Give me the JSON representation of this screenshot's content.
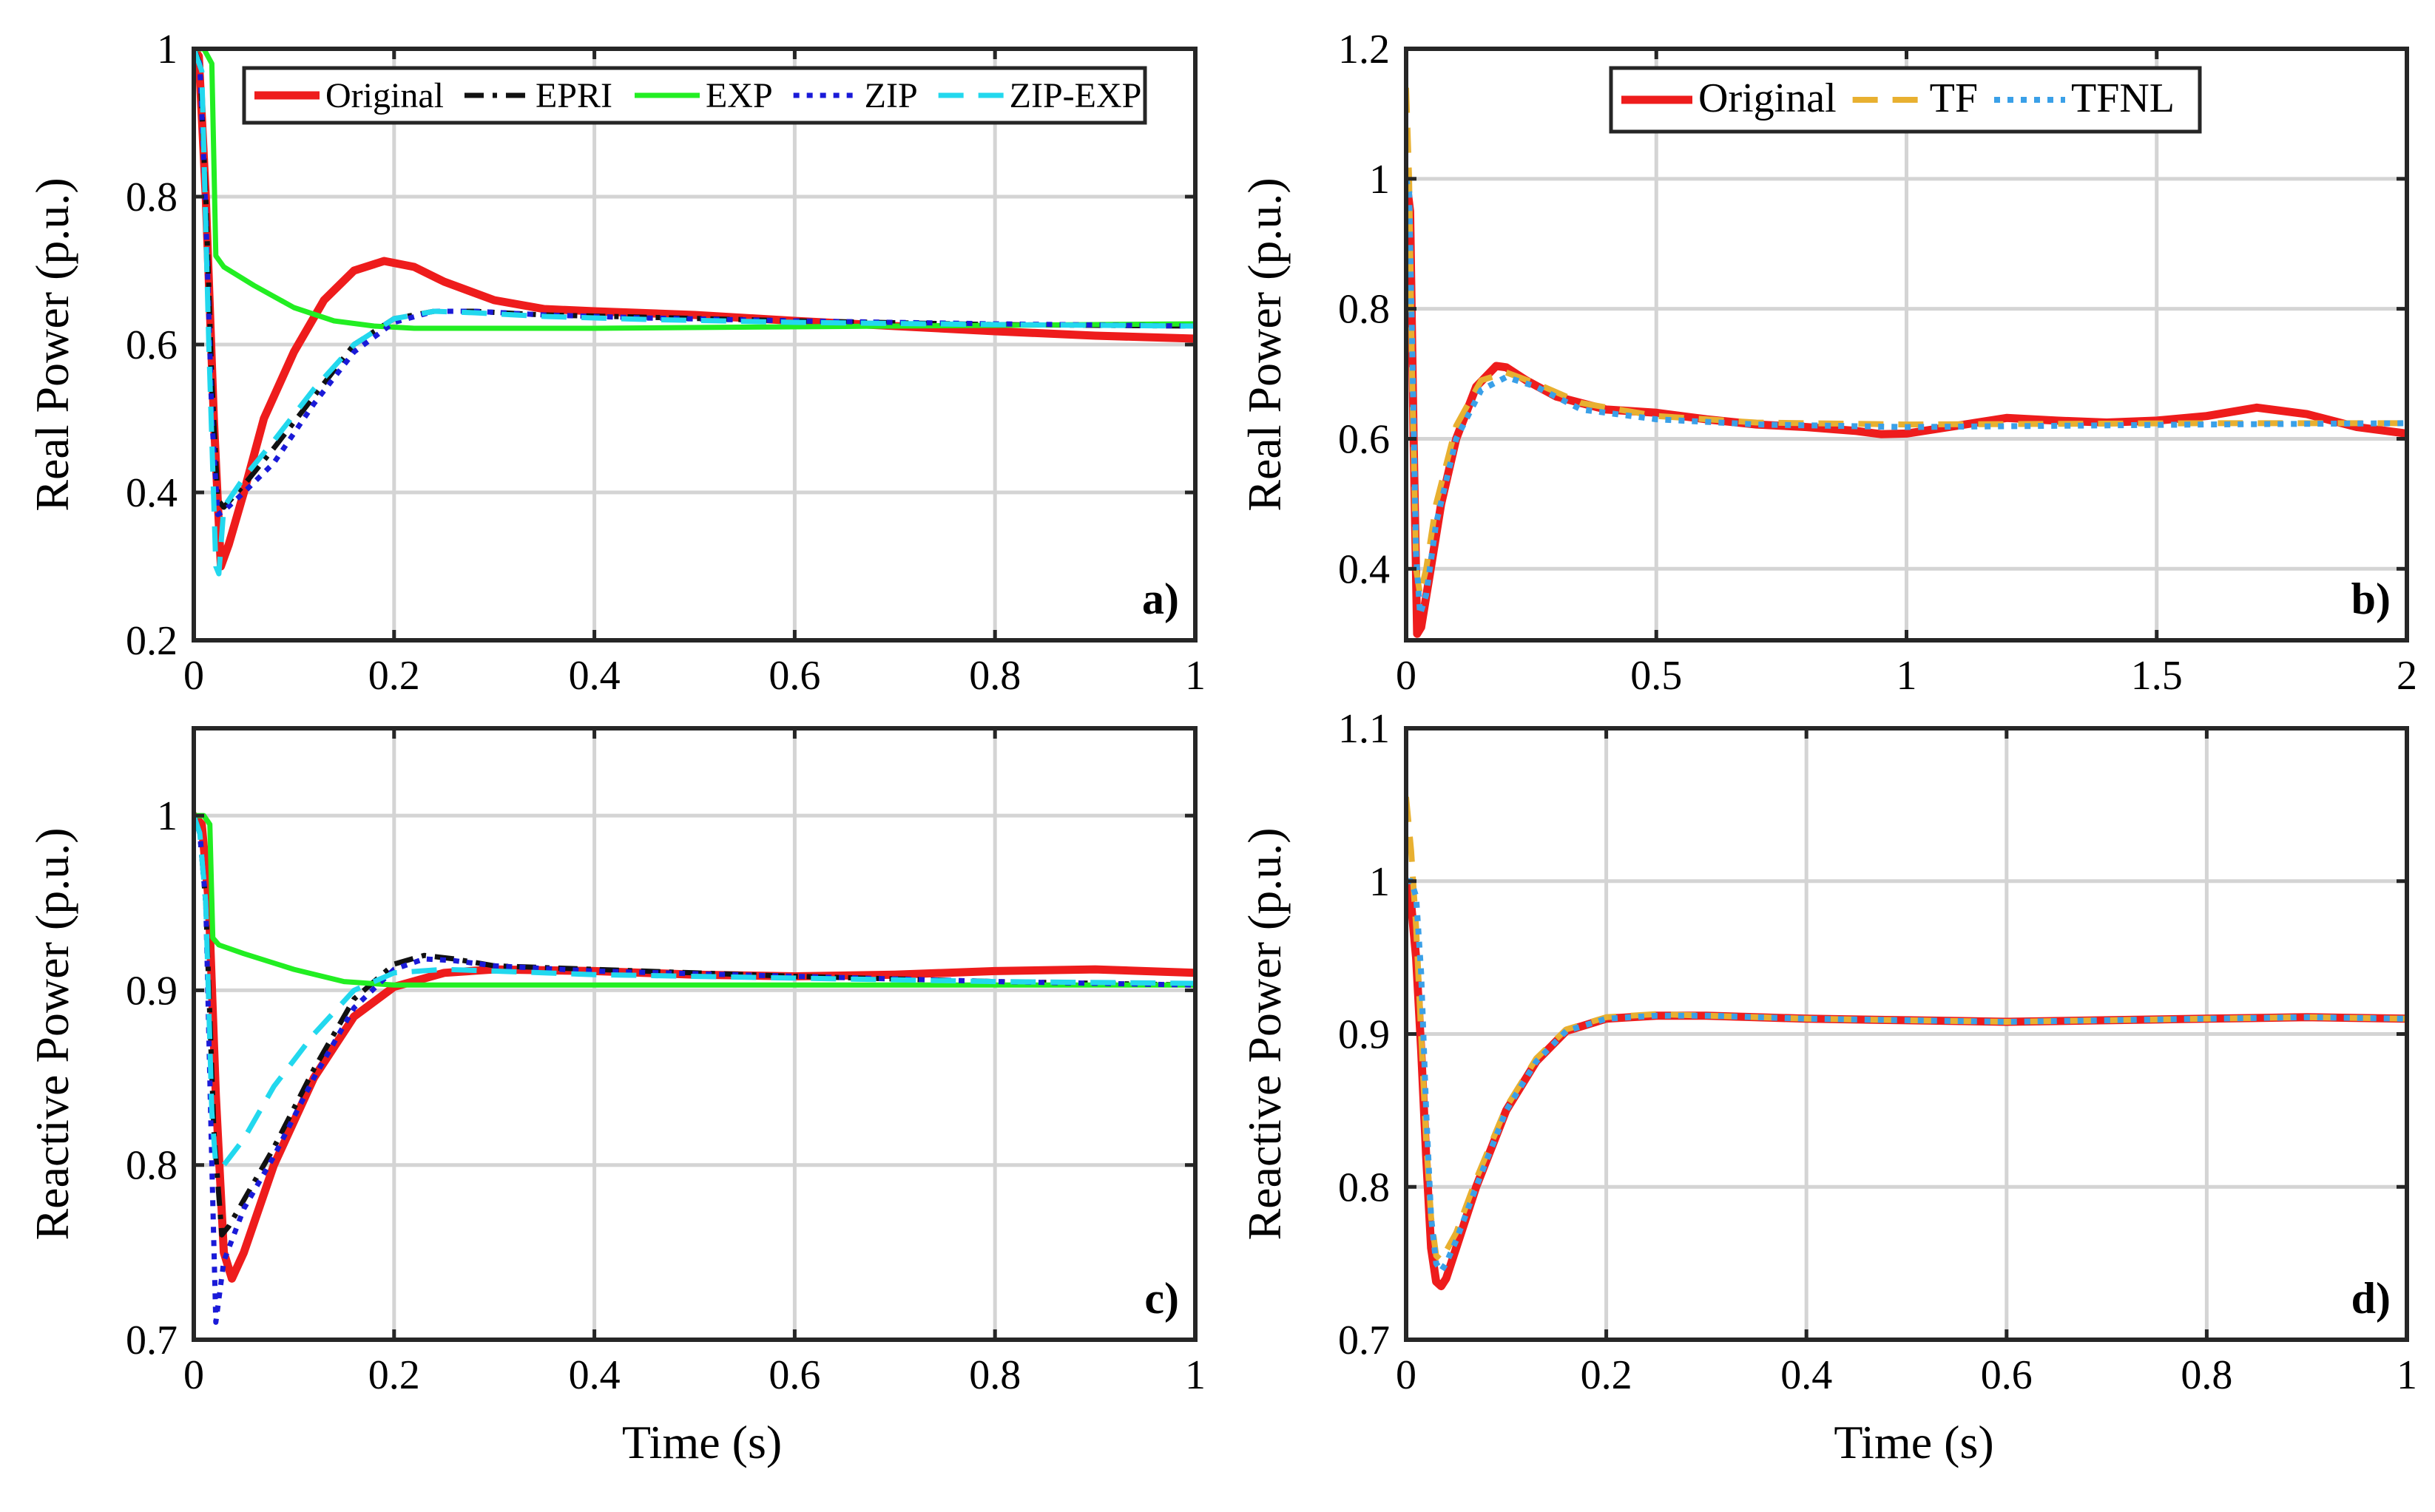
{
  "chart_data": [
    {
      "id": "a",
      "type": "line",
      "panel_label": "a)",
      "xlabel": "",
      "ylabel": "Real Power (p.u.)",
      "xlim": [
        0,
        1
      ],
      "ylim": [
        0.2,
        1
      ],
      "xticks": [
        0,
        0.2,
        0.4,
        0.6,
        0.8,
        1
      ],
      "xtick_labels": [
        "0",
        "0.2",
        "0.4",
        "0.6",
        "0.8",
        "1"
      ],
      "yticks": [
        0.2,
        0.4,
        0.6,
        0.8,
        1
      ],
      "ytick_labels": [
        "0.2",
        "0.4",
        "0.6",
        "0.8",
        "1"
      ],
      "grid": true,
      "legend": "top, horizontal",
      "series": [
        {
          "name": "Original",
          "color": "#ee1c1c",
          "style": "solid",
          "width": 11,
          "x": [
            0,
            0.005,
            0.012,
            0.02,
            0.027,
            0.035,
            0.05,
            0.07,
            0.1,
            0.13,
            0.16,
            0.19,
            0.22,
            0.25,
            0.3,
            0.35,
            0.4,
            0.5,
            0.6,
            0.7,
            0.8,
            0.9,
            0.95,
            1.0
          ],
          "y": [
            1.0,
            0.99,
            0.8,
            0.5,
            0.3,
            0.33,
            0.4,
            0.5,
            0.59,
            0.66,
            0.7,
            0.713,
            0.705,
            0.685,
            0.66,
            0.648,
            0.645,
            0.64,
            0.632,
            0.625,
            0.618,
            0.612,
            0.61,
            0.608
          ]
        },
        {
          "name": "EPRI",
          "color": "#111111",
          "style": "dashdot",
          "width": 7,
          "x": [
            0,
            0.006,
            0.012,
            0.018,
            0.024,
            0.03,
            0.05,
            0.08,
            0.12,
            0.16,
            0.2,
            0.24,
            0.28,
            0.35,
            0.45,
            0.6,
            0.8,
            1.0
          ],
          "y": [
            1.0,
            0.98,
            0.8,
            0.55,
            0.39,
            0.38,
            0.41,
            0.46,
            0.53,
            0.6,
            0.635,
            0.645,
            0.645,
            0.64,
            0.637,
            0.632,
            0.627,
            0.625
          ]
        },
        {
          "name": "EXP",
          "color": "#22ee22",
          "style": "solid",
          "width": 7,
          "x": [
            0,
            0.01,
            0.018,
            0.022,
            0.03,
            0.06,
            0.1,
            0.14,
            0.18,
            0.22,
            0.3,
            0.4,
            0.6,
            0.8,
            1.0
          ],
          "y": [
            1.0,
            1.0,
            0.98,
            0.72,
            0.705,
            0.68,
            0.65,
            0.632,
            0.625,
            0.622,
            0.622,
            0.622,
            0.624,
            0.626,
            0.628
          ]
        },
        {
          "name": "ZIP",
          "color": "#1a1ad8",
          "style": "dotted",
          "width": 7,
          "x": [
            0,
            0.006,
            0.012,
            0.018,
            0.024,
            0.03,
            0.05,
            0.08,
            0.12,
            0.16,
            0.2,
            0.24,
            0.28,
            0.35,
            0.45,
            0.6,
            0.8,
            1.0
          ],
          "y": [
            1.0,
            0.98,
            0.78,
            0.5,
            0.37,
            0.375,
            0.4,
            0.44,
            0.52,
            0.59,
            0.63,
            0.645,
            0.645,
            0.64,
            0.636,
            0.632,
            0.628,
            0.625
          ]
        },
        {
          "name": "ZIP-EXP",
          "color": "#22d8ee",
          "style": "dashed",
          "width": 7,
          "x": [
            0,
            0.008,
            0.015,
            0.022,
            0.025,
            0.03,
            0.05,
            0.08,
            0.12,
            0.16,
            0.2,
            0.24,
            0.28,
            0.35,
            0.45,
            0.6,
            0.8,
            1.0
          ],
          "y": [
            1.0,
            0.97,
            0.6,
            0.3,
            0.29,
            0.38,
            0.42,
            0.47,
            0.54,
            0.6,
            0.635,
            0.645,
            0.643,
            0.638,
            0.634,
            0.63,
            0.627,
            0.625
          ]
        }
      ]
    },
    {
      "id": "b",
      "type": "line",
      "panel_label": "b)",
      "xlabel": "",
      "ylabel": "Real Power (p.u.)",
      "xlim": [
        0,
        2
      ],
      "ylim": [
        0.29,
        1.2
      ],
      "xticks": [
        0,
        0.5,
        1,
        1.5,
        2
      ],
      "xtick_labels": [
        "0",
        "0.5",
        "1",
        "1.5",
        "2"
      ],
      "yticks": [
        0.4,
        0.6,
        0.8,
        1,
        1.2
      ],
      "ytick_labels": [
        "0.4",
        "0.6",
        "0.8",
        "1",
        "1.2"
      ],
      "grid": true,
      "legend": "top, horizontal",
      "series": [
        {
          "name": "Original",
          "color": "#ee1c1c",
          "style": "solid",
          "width": 11,
          "x": [
            0,
            0.008,
            0.015,
            0.022,
            0.03,
            0.045,
            0.07,
            0.1,
            0.14,
            0.18,
            0.2,
            0.24,
            0.3,
            0.4,
            0.5,
            0.6,
            0.7,
            0.8,
            0.9,
            0.95,
            1.0,
            1.1,
            1.2,
            1.3,
            1.4,
            1.5,
            1.6,
            1.7,
            1.8,
            1.9,
            2.0
          ],
          "y": [
            1.0,
            0.95,
            0.6,
            0.3,
            0.31,
            0.38,
            0.5,
            0.6,
            0.68,
            0.712,
            0.71,
            0.69,
            0.665,
            0.645,
            0.64,
            0.63,
            0.622,
            0.618,
            0.612,
            0.607,
            0.608,
            0.62,
            0.632,
            0.628,
            0.625,
            0.628,
            0.635,
            0.648,
            0.638,
            0.618,
            0.608
          ]
        },
        {
          "name": "TF",
          "color": "#e8b030",
          "style": "dashed",
          "width": 8,
          "x": [
            0,
            0.006,
            0.012,
            0.02,
            0.028,
            0.04,
            0.06,
            0.1,
            0.15,
            0.2,
            0.26,
            0.35,
            0.5,
            0.7,
            1.0,
            1.3,
            1.6,
            2.0
          ],
          "y": [
            1.14,
            1.0,
            0.7,
            0.4,
            0.36,
            0.4,
            0.5,
            0.62,
            0.69,
            0.702,
            0.685,
            0.655,
            0.635,
            0.625,
            0.622,
            0.623,
            0.624,
            0.624
          ]
        },
        {
          "name": "TFNL",
          "color": "#3aa0e8",
          "style": "dotted",
          "width": 8,
          "x": [
            0,
            0.006,
            0.012,
            0.02,
            0.028,
            0.04,
            0.06,
            0.1,
            0.15,
            0.2,
            0.26,
            0.35,
            0.5,
            0.7,
            1.0,
            1.3,
            1.6,
            2.0
          ],
          "y": [
            1.0,
            0.98,
            0.75,
            0.42,
            0.33,
            0.36,
            0.47,
            0.6,
            0.675,
            0.695,
            0.68,
            0.645,
            0.63,
            0.622,
            0.618,
            0.62,
            0.622,
            0.624
          ]
        }
      ]
    },
    {
      "id": "c",
      "type": "line",
      "panel_label": "c)",
      "xlabel": "Time (s)",
      "ylabel": "Reactive Power (p.u.)",
      "xlim": [
        0,
        1
      ],
      "ylim": [
        0.7,
        1.05
      ],
      "xticks": [
        0,
        0.2,
        0.4,
        0.6,
        0.8,
        1
      ],
      "xtick_labels": [
        "0",
        "0.2",
        "0.4",
        "0.6",
        "0.8",
        "1"
      ],
      "yticks": [
        0.7,
        0.8,
        0.9,
        1
      ],
      "ytick_labels": [
        "0.7",
        "0.8",
        "0.9",
        "1"
      ],
      "grid": true,
      "legend": "none",
      "series": [
        {
          "name": "Original",
          "color": "#ee1c1c",
          "style": "solid",
          "width": 11,
          "x": [
            0,
            0.008,
            0.015,
            0.022,
            0.03,
            0.038,
            0.05,
            0.08,
            0.12,
            0.16,
            0.2,
            0.25,
            0.3,
            0.4,
            0.5,
            0.6,
            0.7,
            0.8,
            0.9,
            1.0
          ],
          "y": [
            1.0,
            0.995,
            0.95,
            0.84,
            0.75,
            0.735,
            0.75,
            0.8,
            0.85,
            0.885,
            0.902,
            0.91,
            0.912,
            0.911,
            0.909,
            0.908,
            0.909,
            0.911,
            0.912,
            0.91
          ]
        },
        {
          "name": "EPRI",
          "color": "#111111",
          "style": "dashdot",
          "width": 7,
          "x": [
            0,
            0.006,
            0.012,
            0.02,
            0.028,
            0.035,
            0.05,
            0.08,
            0.12,
            0.16,
            0.2,
            0.23,
            0.26,
            0.3,
            0.4,
            0.5,
            0.6,
            0.8,
            1.0
          ],
          "y": [
            1.0,
            0.99,
            0.95,
            0.82,
            0.76,
            0.765,
            0.78,
            0.81,
            0.855,
            0.895,
            0.915,
            0.92,
            0.918,
            0.914,
            0.912,
            0.91,
            0.908,
            0.905,
            0.903
          ]
        },
        {
          "name": "EXP",
          "color": "#22ee22",
          "style": "solid",
          "width": 7,
          "x": [
            0,
            0.01,
            0.016,
            0.019,
            0.025,
            0.05,
            0.1,
            0.15,
            0.2,
            0.3,
            0.5,
            0.8,
            1.0
          ],
          "y": [
            1.0,
            1.0,
            0.995,
            0.93,
            0.926,
            0.921,
            0.912,
            0.905,
            0.903,
            0.903,
            0.903,
            0.903,
            0.903
          ]
        },
        {
          "name": "ZIP",
          "color": "#1a1ad8",
          "style": "dotted",
          "width": 7,
          "x": [
            0,
            0.006,
            0.012,
            0.018,
            0.022,
            0.03,
            0.05,
            0.08,
            0.12,
            0.16,
            0.2,
            0.23,
            0.26,
            0.3,
            0.4,
            0.6,
            0.8,
            1.0
          ],
          "y": [
            1.0,
            0.99,
            0.95,
            0.8,
            0.71,
            0.745,
            0.775,
            0.805,
            0.85,
            0.89,
            0.912,
            0.918,
            0.917,
            0.914,
            0.911,
            0.908,
            0.905,
            0.903
          ]
        },
        {
          "name": "ZIP-EXP",
          "color": "#22d8ee",
          "style": "dashed",
          "width": 7,
          "x": [
            0,
            0.006,
            0.012,
            0.018,
            0.022,
            0.03,
            0.05,
            0.08,
            0.12,
            0.16,
            0.2,
            0.25,
            0.3,
            0.4,
            0.6,
            0.8,
            1.0
          ],
          "y": [
            1.0,
            0.99,
            0.95,
            0.83,
            0.8,
            0.8,
            0.815,
            0.845,
            0.875,
            0.9,
            0.91,
            0.912,
            0.911,
            0.909,
            0.907,
            0.905,
            0.904
          ]
        }
      ]
    },
    {
      "id": "d",
      "type": "line",
      "panel_label": "d)",
      "xlabel": "Time (s)",
      "ylabel": "Reactive Power (p.u.)",
      "xlim": [
        0,
        1
      ],
      "ylim": [
        0.7,
        1.1
      ],
      "xticks": [
        0,
        0.2,
        0.4,
        0.6,
        0.8,
        1
      ],
      "xtick_labels": [
        "0",
        "0.2",
        "0.4",
        "0.6",
        "0.8",
        "1"
      ],
      "yticks": [
        0.7,
        0.8,
        0.9,
        1,
        1.1
      ],
      "ytick_labels": [
        "0.7",
        "0.8",
        "0.9",
        "1",
        "1.1"
      ],
      "grid": true,
      "legend": "none",
      "series": [
        {
          "name": "Original",
          "color": "#ee1c1c",
          "style": "solid",
          "width": 11,
          "x": [
            0,
            0.005,
            0.01,
            0.015,
            0.02,
            0.025,
            0.03,
            0.035,
            0.04,
            0.05,
            0.07,
            0.1,
            0.13,
            0.16,
            0.2,
            0.25,
            0.3,
            0.4,
            0.5,
            0.6,
            0.7,
            0.8,
            0.9,
            1.0
          ],
          "y": [
            1.0,
            0.985,
            0.95,
            0.89,
            0.82,
            0.76,
            0.738,
            0.735,
            0.74,
            0.76,
            0.8,
            0.85,
            0.882,
            0.902,
            0.91,
            0.912,
            0.912,
            0.91,
            0.909,
            0.908,
            0.909,
            0.91,
            0.911,
            0.91
          ]
        },
        {
          "name": "TF",
          "color": "#e8b030",
          "style": "dashed",
          "width": 8,
          "x": [
            0,
            0.005,
            0.01,
            0.015,
            0.02,
            0.025,
            0.03,
            0.035,
            0.04,
            0.05,
            0.07,
            0.1,
            0.13,
            0.16,
            0.2,
            0.25,
            0.3,
            0.4,
            0.5,
            0.6,
            0.7,
            0.8,
            0.9,
            1.0
          ],
          "y": [
            1.055,
            1.02,
            0.97,
            0.9,
            0.83,
            0.78,
            0.755,
            0.752,
            0.758,
            0.77,
            0.805,
            0.852,
            0.884,
            0.903,
            0.911,
            0.913,
            0.912,
            0.91,
            0.909,
            0.908,
            0.909,
            0.91,
            0.911,
            0.91
          ]
        },
        {
          "name": "TFNL",
          "color": "#3aa0e8",
          "style": "dotted",
          "width": 8,
          "x": [
            0,
            0.005,
            0.01,
            0.015,
            0.02,
            0.025,
            0.03,
            0.035,
            0.04,
            0.05,
            0.07,
            0.1,
            0.13,
            0.16,
            0.2,
            0.25,
            0.3,
            0.4,
            0.5,
            0.6,
            0.7,
            0.8,
            0.9,
            1.0
          ],
          "y": [
            1.0,
            1.0,
            0.99,
            0.94,
            0.85,
            0.78,
            0.75,
            0.745,
            0.75,
            0.765,
            0.8,
            0.85,
            0.882,
            0.902,
            0.91,
            0.912,
            0.912,
            0.91,
            0.909,
            0.908,
            0.909,
            0.91,
            0.911,
            0.91
          ]
        }
      ]
    }
  ]
}
